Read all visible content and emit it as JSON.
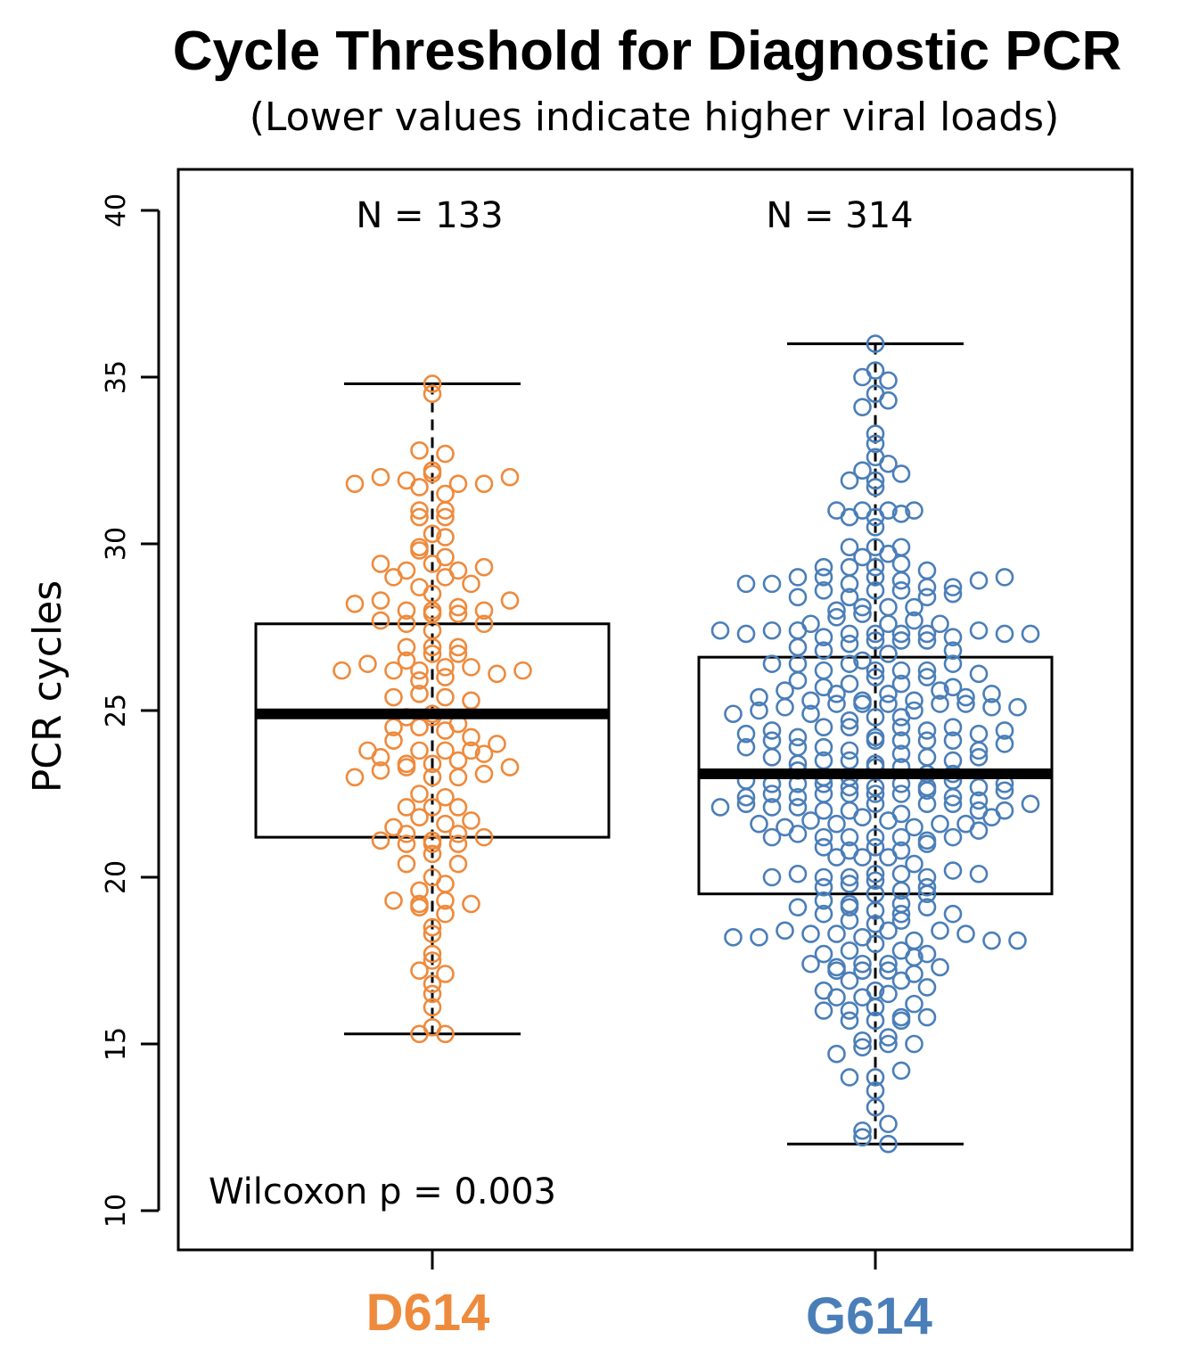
{
  "chart_data": {
    "type": "box",
    "title": "Cycle Threshold for Diagnostic PCR",
    "subtitle": "(Lower values indicate higher viral loads)",
    "ylabel": "PCR cycles",
    "ylim": [
      10,
      40
    ],
    "yticks": [
      "10",
      "15",
      "20",
      "25",
      "30",
      "35",
      "40"
    ],
    "categories": [
      "D614",
      "G614"
    ],
    "colors": {
      "D614": "#EE8A3C",
      "G614": "#4A7EB8"
    },
    "counts": [
      "N = 133",
      "N = 314"
    ],
    "annotation": "Wilcoxon p = 0.003",
    "boxes": [
      {
        "name": "D614",
        "n": 133,
        "whisker_low": 15.3,
        "q1": 21.2,
        "median": 24.9,
        "q3": 27.6,
        "whisker_high": 34.8
      },
      {
        "name": "G614",
        "n": 314,
        "whisker_low": 12.0,
        "q1": 19.5,
        "median": 23.1,
        "q3": 26.6,
        "whisker_high": 36.0
      }
    ]
  }
}
